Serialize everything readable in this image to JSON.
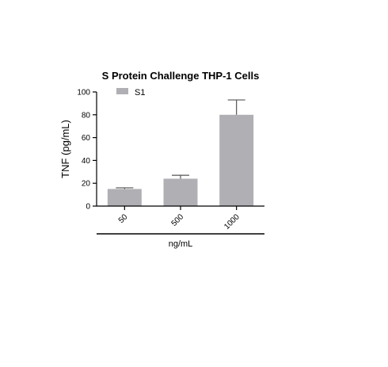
{
  "chart_data": {
    "type": "bar",
    "title": "S Protein Challenge THP-1 Cells",
    "xlabel": "ng/mL",
    "ylabel": "TNF (pg/mL)",
    "ylim": [
      0,
      100
    ],
    "yticks": [
      "0",
      "20",
      "40",
      "60",
      "80",
      "100"
    ],
    "categories": [
      "50",
      "500",
      "1000"
    ],
    "series": [
      {
        "name": "S1",
        "values": [
          15,
          24,
          80
        ],
        "errors": [
          1,
          3,
          13
        ],
        "color": "#b0afb4"
      }
    ],
    "legend": "top-left",
    "grid": false
  }
}
